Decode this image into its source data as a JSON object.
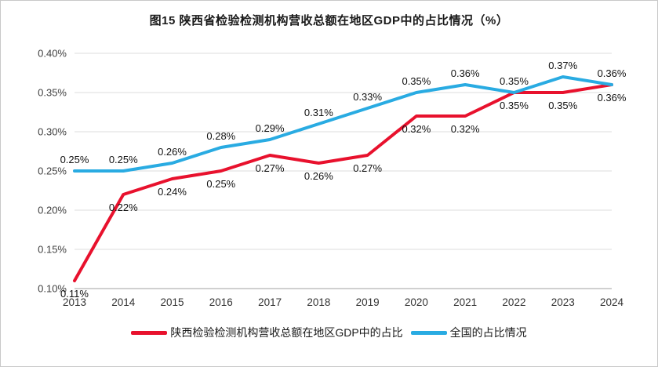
{
  "chart_data": {
    "type": "line",
    "title": "图15 陕西省检验检测机构营收总额在地区GDP中的占比情况（%）",
    "categories": [
      "2013",
      "2014",
      "2015",
      "2016",
      "2017",
      "2018",
      "2019",
      "2020",
      "2021",
      "2022",
      "2023",
      "2024"
    ],
    "xlabel": "",
    "ylabel": "",
    "ylim": [
      0.1,
      0.4
    ],
    "y_ticks": [
      "0.10%",
      "0.15%",
      "0.20%",
      "0.25%",
      "0.30%",
      "0.35%",
      "0.40%"
    ],
    "grid": "horizontal",
    "legend_position": "bottom",
    "colors": {
      "shaanxi_red": "#e8112d",
      "national_blue": "#29abe2",
      "gridline": "#dcdcdc",
      "axis": "#a0a0a0"
    },
    "series": [
      {
        "name": "陕西检验检测机构营收总额在地区GDP中的占比",
        "color": "#e8112d",
        "label_position": "below",
        "values": [
          0.11,
          0.22,
          0.24,
          0.25,
          0.27,
          0.26,
          0.27,
          0.32,
          0.32,
          0.35,
          0.35,
          0.36
        ],
        "labels": [
          "0.11%",
          "0.22%",
          "0.24%",
          "0.25%",
          "0.27%",
          "0.26%",
          "0.27%",
          "0.32%",
          "0.32%",
          "0.35%",
          "0.35%",
          "0.36%"
        ]
      },
      {
        "name": "全国的占比情况",
        "color": "#29abe2",
        "label_position": "above",
        "values": [
          0.25,
          0.25,
          0.26,
          0.28,
          0.29,
          0.31,
          0.33,
          0.35,
          0.36,
          0.35,
          0.37,
          0.36
        ],
        "labels": [
          "0.25%",
          "0.25%",
          "0.26%",
          "0.28%",
          "0.29%",
          "0.31%",
          "0.33%",
          "0.35%",
          "0.36%",
          "0.35%",
          "0.37%",
          "0.36%"
        ]
      }
    ]
  }
}
